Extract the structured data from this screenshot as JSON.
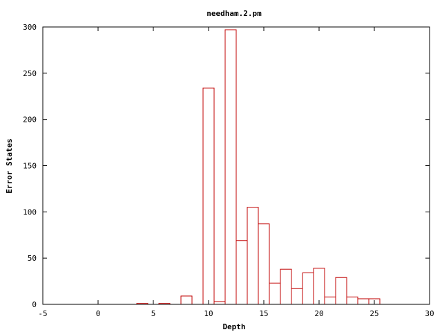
{
  "chart_data": {
    "type": "bar",
    "title": "needham.2.pm",
    "xlabel": "Depth",
    "ylabel": "Error States",
    "xlim": [
      -5,
      30
    ],
    "ylim": [
      0,
      300
    ],
    "xticks": [
      -5,
      0,
      5,
      10,
      15,
      20,
      25,
      30
    ],
    "yticks": [
      0,
      50,
      100,
      150,
      200,
      250,
      300
    ],
    "bar_width": 1,
    "grid": false,
    "legend": "none",
    "bar_color": "#c00000",
    "series": [
      {
        "x": [
          4,
          6,
          8,
          10,
          11,
          12,
          13,
          14,
          15,
          16,
          17,
          18,
          19,
          20,
          21,
          22,
          23,
          24,
          25
        ],
        "values": [
          1,
          1,
          9,
          234,
          3,
          297,
          69,
          105,
          87,
          23,
          38,
          17,
          34,
          39,
          8,
          29,
          8,
          6,
          6
        ]
      }
    ]
  }
}
